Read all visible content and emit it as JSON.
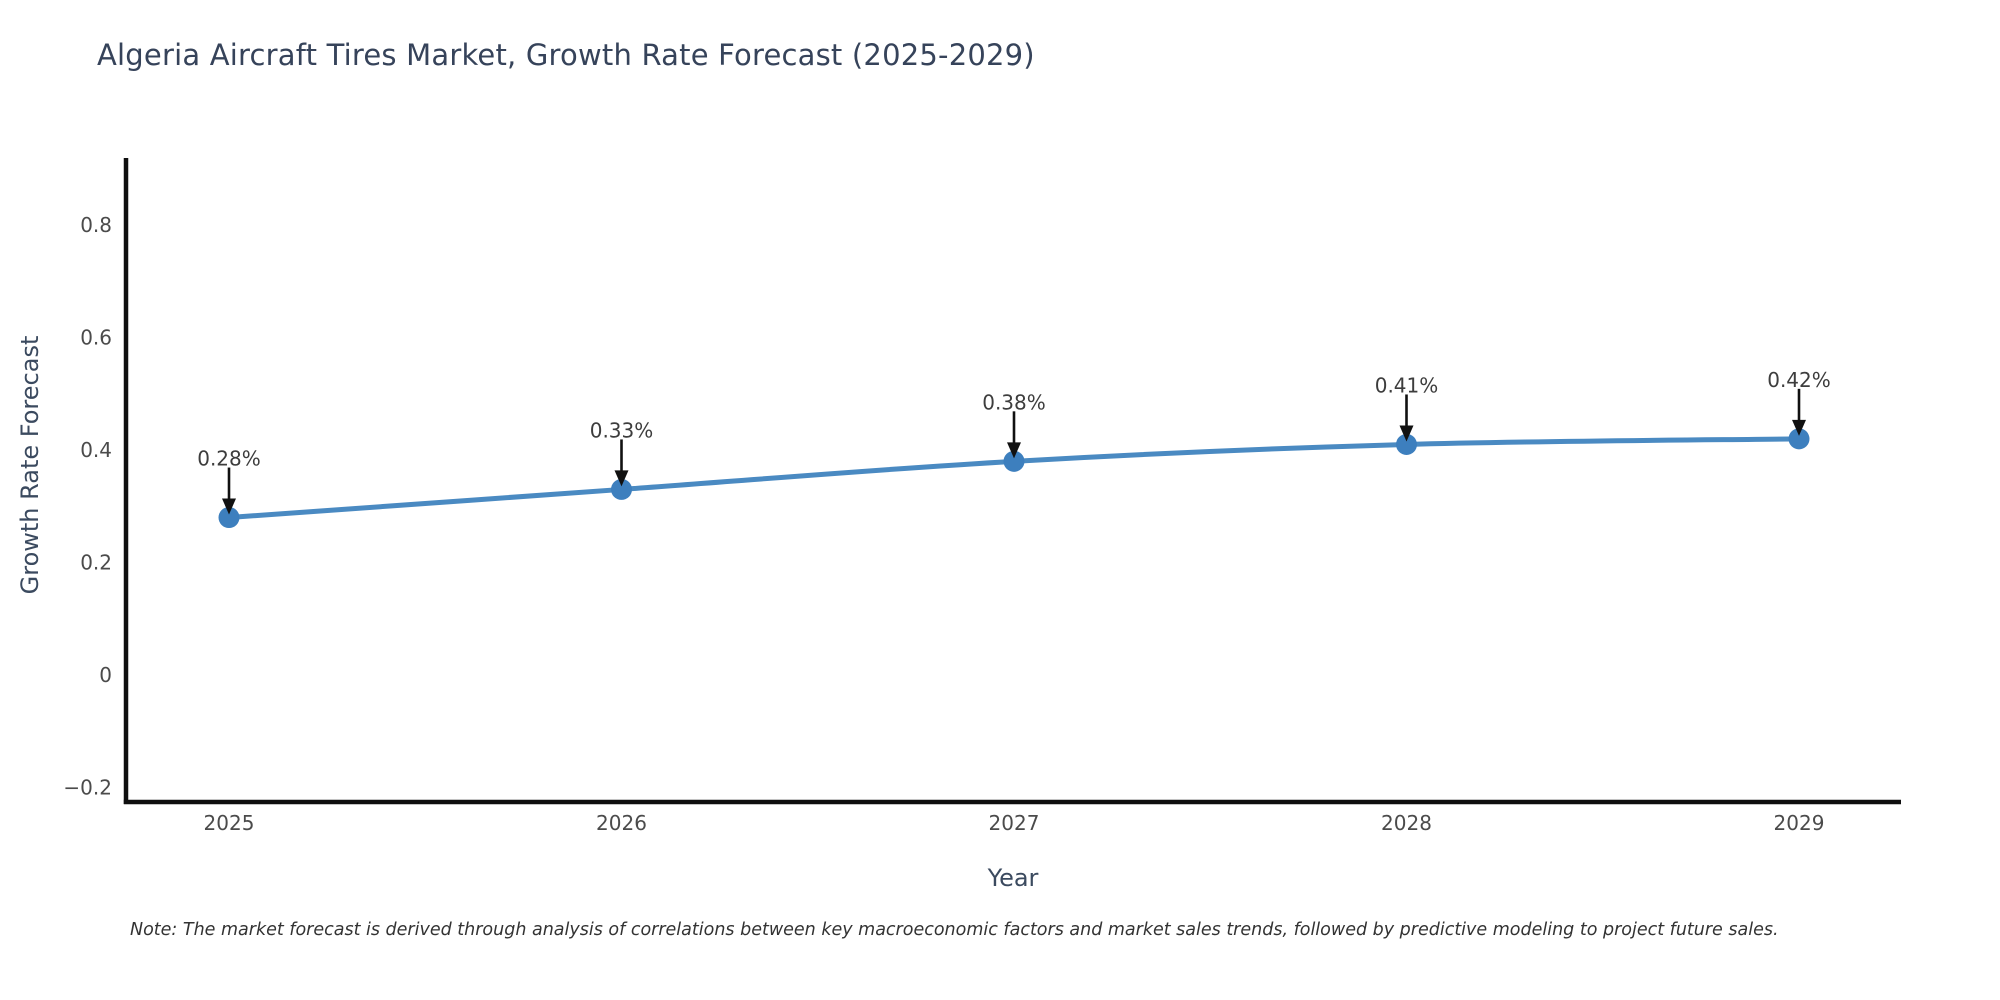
{
  "chart_data": {
    "type": "line",
    "title": "Algeria Aircraft Tires Market, Growth Rate Forecast (2025-2029)",
    "xlabel": "Year",
    "ylabel": "Growth Rate Forecast",
    "categories": [
      "2025",
      "2026",
      "2027",
      "2028",
      "2029"
    ],
    "values": [
      0.28,
      0.33,
      0.38,
      0.41,
      0.42
    ],
    "point_labels": [
      "0.28%",
      "0.33%",
      "0.38%",
      "0.41%",
      "0.42%"
    ],
    "yticks": [
      -0.2,
      0,
      0.2,
      0.4,
      0.6,
      0.8
    ],
    "ylim": [
      -0.226,
      0.916
    ],
    "grid": false,
    "legend_position": "none",
    "line_color": "#4A8AC2",
    "marker_color": "#3D7FBE",
    "axis_color": "#0F0F0F",
    "annotation_arrow_color": "#111111"
  },
  "note": "Note: The market forecast is derived through analysis of correlations between key macroeconomic factors and market sales trends, followed by predictive modeling to project future sales."
}
